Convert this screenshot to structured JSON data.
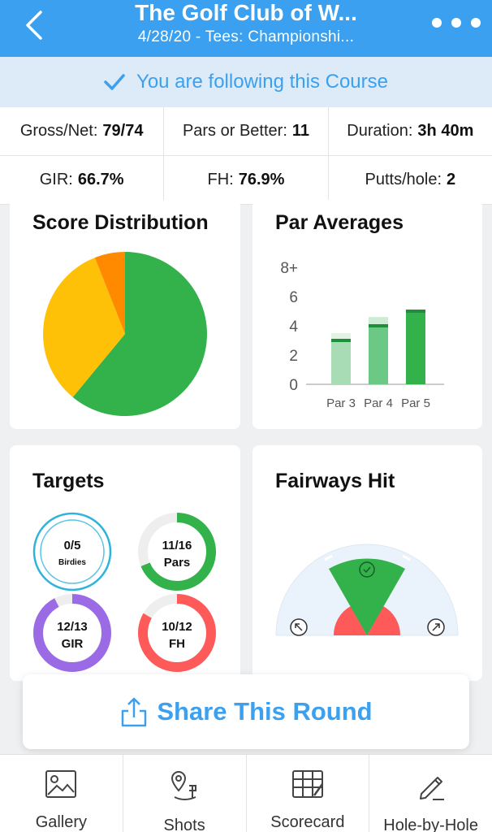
{
  "header": {
    "title": "The Golf Club of W...",
    "subtitle": "4/28/20 - Tees: Championshi...",
    "back_icon": "chevron-left-icon",
    "more_icon": "more-dots-icon"
  },
  "follow": {
    "text": "You are following this Course",
    "icon": "checkmark-icon"
  },
  "stats": [
    [
      {
        "label": "Gross/Net:",
        "value": "79/74"
      },
      {
        "label": "Pars or Better:",
        "value": "11"
      },
      {
        "label": "Duration:",
        "value": "3h 40m"
      }
    ],
    [
      {
        "label": "GIR:",
        "value": "66.7%"
      },
      {
        "label": "FH:",
        "value": "76.9%"
      },
      {
        "label": "Putts/hole:",
        "value": "2"
      }
    ]
  ],
  "score_distribution": {
    "title": "Score Distribution",
    "chart_data": {
      "type": "pie",
      "slices": [
        {
          "value": 61,
          "color": "#33b14a"
        },
        {
          "value": 33,
          "color": "#ffc107"
        },
        {
          "value": 6,
          "color": "#ff8a00"
        }
      ]
    }
  },
  "par_averages": {
    "title": "Par Averages",
    "chart_data": {
      "type": "bar",
      "categories": [
        "Par 3",
        "Par 4",
        "Par 5"
      ],
      "values": [
        3.0,
        4.0,
        5.0
      ],
      "max_values": [
        3.5,
        4.6,
        5.1
      ],
      "colors": [
        "#a8dcb5",
        "#6cc985",
        "#33b14a"
      ],
      "marker_color": "#1f8f3a",
      "ytick_labels": [
        "0",
        "2",
        "4",
        "6",
        "8+"
      ],
      "yticks": [
        0,
        2,
        4,
        6,
        8
      ],
      "ylim": [
        0,
        8
      ]
    }
  },
  "targets": {
    "title": "Targets",
    "rings": [
      {
        "value": "0/5",
        "label": "Birdies",
        "fraction": 0.0,
        "color": "#2eb4dc"
      },
      {
        "value": "11/16",
        "label": "Pars",
        "fraction": 0.6875,
        "color": "#33b14a"
      },
      {
        "value": "12/13",
        "label": "GIR",
        "fraction": 0.923,
        "color": "#9b6be6"
      },
      {
        "value": "10/12",
        "label": "FH",
        "fraction": 0.833,
        "color": "#ff5a5a"
      }
    ]
  },
  "fairways_hit": {
    "title": "Fairways Hit",
    "hit_pct": 76.9,
    "center_icon": "check-circle-icon",
    "left_icon": "arrow-up-left-icon",
    "right_icon": "arrow-up-right-icon"
  },
  "share": {
    "label": "Share This Round",
    "icon": "share-icon"
  },
  "tabs": [
    {
      "label": "Gallery",
      "icon": "image-icon"
    },
    {
      "label": "Shots",
      "icon": "pin-icon"
    },
    {
      "label": "Scorecard",
      "icon": "scorecard-icon"
    },
    {
      "label": "Hole-by-Hole",
      "icon": "pencil-icon"
    }
  ]
}
